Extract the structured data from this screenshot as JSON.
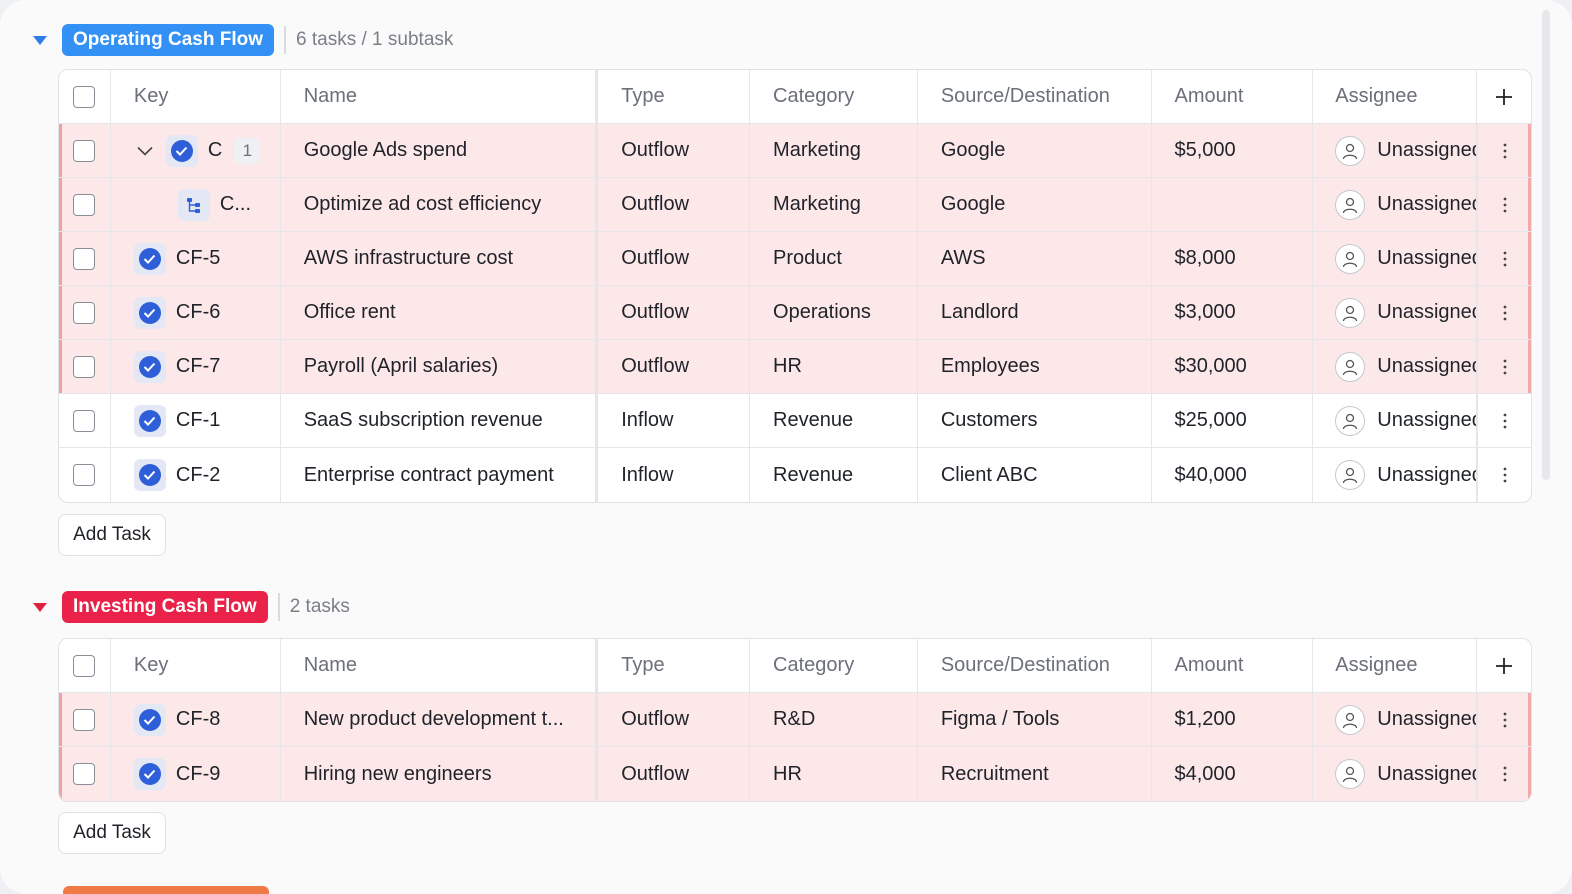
{
  "colors": {
    "operating": "#3391f5",
    "investing": "#ea2148",
    "caret_operating": "#2f7de9",
    "caret_investing": "#e0203f"
  },
  "columns": {
    "key": "Key",
    "name": "Name",
    "type": "Type",
    "category": "Category",
    "source": "Source/Destination",
    "amount": "Amount",
    "assignee": "Assignee"
  },
  "groups": [
    {
      "title": "Operating Cash Flow",
      "count": "6 tasks / 1 subtask",
      "add_label": "Add Task",
      "rows": [
        {
          "key": "C",
          "subtasks": "1",
          "name": "Google Ads spend",
          "type": "Outflow",
          "category": "Marketing",
          "source": "Google",
          "amount": "$5,000",
          "assignee": "Unassigned"
        },
        {
          "key": "C...",
          "name": "Optimize ad cost efficiency",
          "type": "Outflow",
          "category": "Marketing",
          "source": "Google",
          "amount": "",
          "assignee": "Unassigned"
        },
        {
          "key": "CF-5",
          "name": "AWS infrastructure cost",
          "type": "Outflow",
          "category": "Product",
          "source": "AWS",
          "amount": "$8,000",
          "assignee": "Unassigned"
        },
        {
          "key": "CF-6",
          "name": "Office rent",
          "type": "Outflow",
          "category": "Operations",
          "source": "Landlord",
          "amount": "$3,000",
          "assignee": "Unassigned"
        },
        {
          "key": "CF-7",
          "name": "Payroll (April salaries)",
          "type": "Outflow",
          "category": "HR",
          "source": "Employees",
          "amount": "$30,000",
          "assignee": "Unassigned"
        },
        {
          "key": "CF-1",
          "name": "SaaS subscription revenue",
          "type": "Inflow",
          "category": "Revenue",
          "source": "Customers",
          "amount": "$25,000",
          "assignee": "Unassigned"
        },
        {
          "key": "CF-2",
          "name": "Enterprise contract payment",
          "type": "Inflow",
          "category": "Revenue",
          "source": "Client ABC",
          "amount": "$40,000",
          "assignee": "Unassigned"
        }
      ]
    },
    {
      "title": "Investing Cash Flow",
      "count": "2 tasks",
      "add_label": "Add Task",
      "rows": [
        {
          "key": "CF-8",
          "name": "New product development t...",
          "type": "Outflow",
          "category": "R&D",
          "source": "Figma / Tools",
          "amount": "$1,200",
          "assignee": "Unassigned"
        },
        {
          "key": "CF-9",
          "name": "Hiring new engineers",
          "type": "Outflow",
          "category": "HR",
          "source": "Recruitment",
          "amount": "$4,000",
          "assignee": "Unassigned"
        }
      ]
    }
  ]
}
